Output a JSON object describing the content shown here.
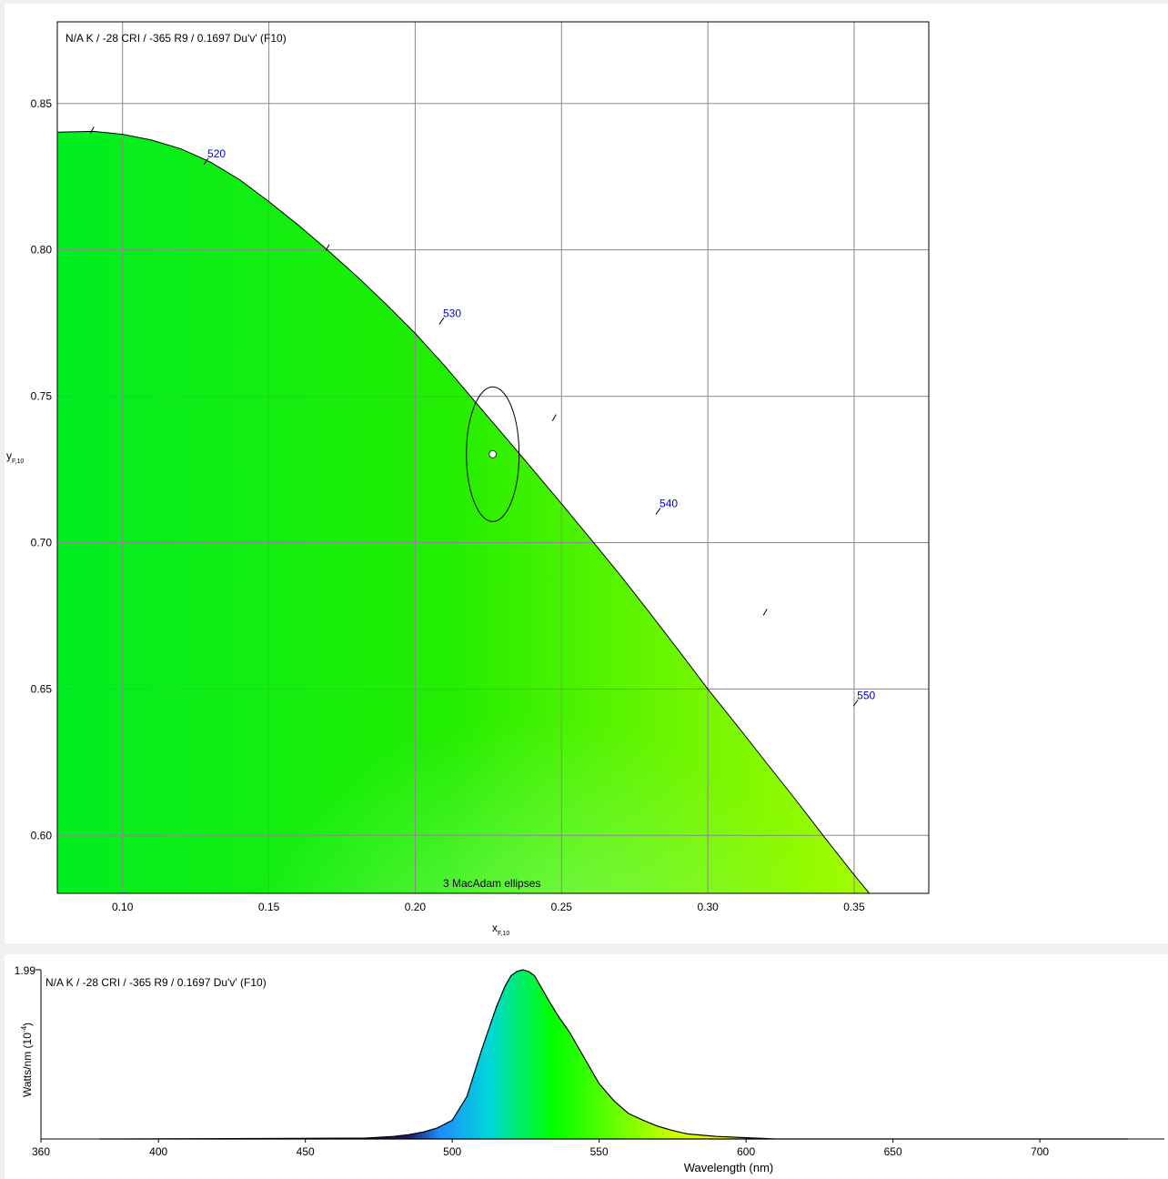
{
  "chart_data": [
    {
      "type": "scatter",
      "subtype": "chromaticity-diagram",
      "info": "N/A K / -28 CRI / -365 R9 / 0.1697 Du'v' (F10)",
      "xlabel": "x",
      "xlabel_sub": "F,10",
      "ylabel": "y",
      "ylabel_sub": "F,10",
      "xlim": [
        0.0777,
        0.3755
      ],
      "ylim": [
        0.5802,
        0.8779
      ],
      "x_ticks": [
        "0.10",
        "0.15",
        "0.20",
        "0.25",
        "0.30",
        "0.35"
      ],
      "y_ticks": [
        "0.60",
        "0.65",
        "0.70",
        "0.75",
        "0.80",
        "0.85"
      ],
      "grid": true,
      "point": {
        "x": 0.2265,
        "y": 0.7302
      },
      "ellipse": {
        "cx": 0.2265,
        "cy": 0.7302,
        "rx": 0.009,
        "ry": 0.023,
        "label": "3  MacAdam ellipses"
      },
      "locus": [
        [
          0.0777,
          0.8402
        ],
        [
          0.09,
          0.8405
        ],
        [
          0.1,
          0.8395
        ],
        [
          0.11,
          0.8375
        ],
        [
          0.12,
          0.8345
        ],
        [
          0.13,
          0.83
        ],
        [
          0.14,
          0.824
        ],
        [
          0.15,
          0.8165
        ],
        [
          0.16,
          0.8085
        ],
        [
          0.17,
          0.8
        ],
        [
          0.18,
          0.791
        ],
        [
          0.19,
          0.7815
        ],
        [
          0.2,
          0.7715
        ],
        [
          0.21,
          0.7605
        ],
        [
          0.22,
          0.7487
        ],
        [
          0.23,
          0.737
        ],
        [
          0.24,
          0.7252
        ],
        [
          0.25,
          0.7133
        ],
        [
          0.26,
          0.7012
        ],
        [
          0.27,
          0.689
        ],
        [
          0.28,
          0.6762
        ],
        [
          0.29,
          0.6632
        ],
        [
          0.3,
          0.65
        ],
        [
          0.31,
          0.6375
        ],
        [
          0.32,
          0.6248
        ],
        [
          0.33,
          0.6122
        ],
        [
          0.34,
          0.5992
        ],
        [
          0.35,
          0.5865
        ],
        [
          0.3755,
          0.5555
        ]
      ],
      "wavelength_labels": [
        {
          "label": "520",
          "x": 0.129,
          "y": 0.831
        },
        {
          "label": "530",
          "x": 0.2095,
          "y": 0.7765
        },
        {
          "label": "540",
          "x": 0.2835,
          "y": 0.7115
        },
        {
          "label": "550",
          "x": 0.351,
          "y": 0.646
        }
      ],
      "wavelength_ticks": [
        {
          "x": 0.0893,
          "y": 0.8405
        },
        {
          "x": 0.1697,
          "y": 0.8003
        },
        {
          "x": 0.2472,
          "y": 0.7422
        },
        {
          "x": 0.3193,
          "y": 0.6758
        }
      ]
    },
    {
      "type": "area",
      "subtype": "spectral-power-distribution",
      "info": "N/A K / -28 CRI / -365 R9 / 0.1697 Du'v' (F10)",
      "xlabel": "Wavelength (nm)",
      "ylabel": "Watts/nm (10",
      "ylabel_sup": "-4",
      "ylabel_end": ")",
      "ymax_label": "1.99",
      "xlim": [
        360,
        730
      ],
      "ylim": [
        0,
        1.99
      ],
      "x_ticks": [
        "360",
        "400",
        "450",
        "500",
        "550",
        "600",
        "650",
        "700"
      ],
      "x": [
        380,
        470,
        480,
        485,
        490,
        495,
        500,
        505,
        510,
        515,
        518,
        520,
        522,
        524,
        526,
        528,
        530,
        533,
        536,
        540,
        545,
        550,
        555,
        560,
        565,
        570,
        575,
        580,
        590,
        600,
        610,
        730
      ],
      "values": [
        0.0,
        0.01,
        0.03,
        0.05,
        0.08,
        0.13,
        0.22,
        0.5,
        1.05,
        1.55,
        1.8,
        1.92,
        1.97,
        1.99,
        1.97,
        1.92,
        1.8,
        1.62,
        1.45,
        1.25,
        0.95,
        0.65,
        0.45,
        0.3,
        0.22,
        0.15,
        0.1,
        0.06,
        0.03,
        0.015,
        0.0,
        0.0
      ]
    }
  ]
}
